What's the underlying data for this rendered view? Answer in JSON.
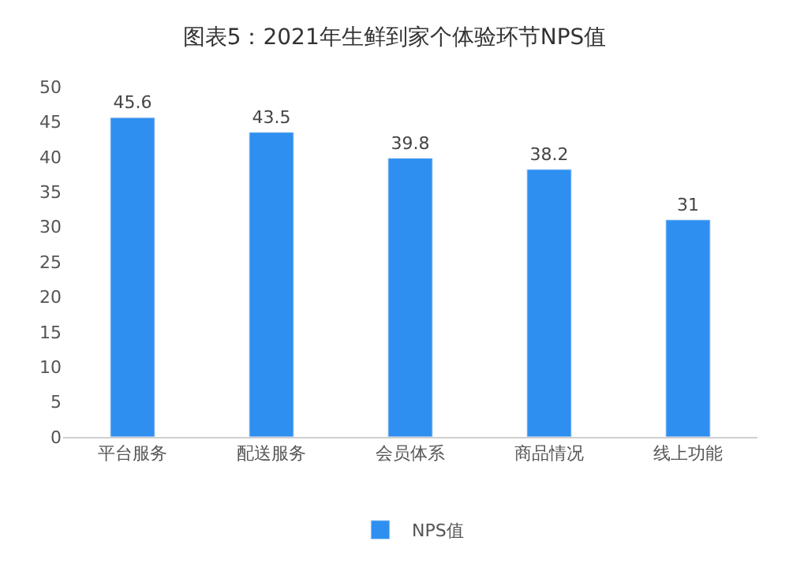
{
  "chart_data": {
    "type": "bar",
    "title": "图表5：2021年生鲜到家个体验环节NPS值",
    "categories": [
      "平台服务",
      "配送服务",
      "会员体系",
      "商品情况",
      "线上功能"
    ],
    "series": [
      {
        "name": "NPS值",
        "color": "#2e8ff0",
        "values": [
          45.6,
          43.5,
          39.8,
          38.2,
          31
        ]
      }
    ],
    "ylim": [
      0,
      50
    ],
    "yticks": [
      0,
      5,
      10,
      15,
      20,
      25,
      30,
      35,
      40,
      45,
      50
    ],
    "data_labels": true,
    "grid": false,
    "legend": "bottom"
  }
}
